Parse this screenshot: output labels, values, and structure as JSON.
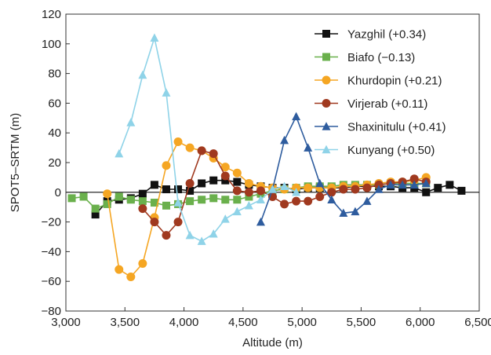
{
  "chart_data": {
    "type": "line",
    "xlabel": "Altitude (m)",
    "ylabel": "SPOT5–SRTM (m)",
    "xlim": [
      3000,
      6500
    ],
    "ylim": [
      -80,
      120
    ],
    "x_ticks": [
      "3,000",
      "3,500",
      "4,000",
      "4,500",
      "5,000",
      "5,500",
      "6,000",
      "6,500"
    ],
    "x_tick_values": [
      3000,
      3500,
      4000,
      4500,
      5000,
      5500,
      6000,
      6500
    ],
    "y_ticks": [
      "−80",
      "−60",
      "−40",
      "−20",
      "0",
      "20",
      "40",
      "60",
      "80",
      "100",
      "120"
    ],
    "y_tick_values": [
      -80,
      -60,
      -40,
      -20,
      0,
      20,
      40,
      60,
      80,
      100,
      120
    ],
    "zero_line": true,
    "grid": false,
    "legend_position": "top-right",
    "series": [
      {
        "name": "Yazghil (+0.34)",
        "color": "#111111",
        "marker": "square",
        "x": [
          3250,
          3350,
          3450,
          3550,
          3650,
          3750,
          3850,
          3950,
          4050,
          4150,
          4250,
          4350,
          4450,
          4550,
          4650,
          4750,
          4850,
          4950,
          5050,
          5150,
          5250,
          5350,
          5450,
          5550,
          5650,
          5750,
          5850,
          5950,
          6050,
          6150,
          6250,
          6350
        ],
        "y": [
          -15,
          -6,
          -5,
          -4,
          -1,
          5,
          2,
          2,
          1,
          6,
          8,
          8,
          7,
          5,
          4,
          3,
          3,
          2,
          3,
          3,
          3,
          3,
          4,
          4,
          4,
          4,
          3,
          3,
          0,
          3,
          5,
          1
        ]
      },
      {
        "name": "Biafo (−0.13)",
        "color": "#6ab04c",
        "marker": "square",
        "x": [
          3050,
          3150,
          3250,
          3350,
          3450,
          3550,
          3650,
          3750,
          3850,
          3950,
          4050,
          4150,
          4250,
          4350,
          4450,
          4550,
          4650,
          4750,
          4850,
          4950,
          5050,
          5150,
          5250,
          5350,
          5450,
          5550,
          5650,
          5750,
          5850,
          5950,
          6050
        ],
        "y": [
          -4,
          -3,
          -11,
          -8,
          -3,
          -5,
          -6,
          -7,
          -9,
          -8,
          -6,
          -5,
          -4,
          -5,
          -5,
          -3,
          -1,
          1,
          2,
          3,
          4,
          4,
          4,
          5,
          5,
          5,
          5,
          6,
          6,
          6,
          6
        ]
      },
      {
        "name": "Khurdopin (+0.21)",
        "color": "#f5a623",
        "marker": "circle",
        "x": [
          3350,
          3450,
          3550,
          3650,
          3750,
          3850,
          3950,
          4050,
          4150,
          4250,
          4350,
          4450,
          4550,
          4650,
          4750,
          4850,
          4950,
          5050,
          5150,
          5250,
          5350,
          5450,
          5550,
          5650,
          5750,
          5850,
          5950,
          6050
        ],
        "y": [
          -1,
          -52,
          -57,
          -48,
          -17,
          18,
          34,
          30,
          28,
          23,
          17,
          13,
          6,
          4,
          3,
          2,
          3,
          3,
          3,
          3,
          4,
          4,
          5,
          6,
          7,
          7,
          8,
          10
        ]
      },
      {
        "name": "Virjerab (+0.11)",
        "color": "#a0391f",
        "marker": "circle",
        "x": [
          3650,
          3750,
          3850,
          3950,
          4050,
          4150,
          4250,
          4350,
          4450,
          4550,
          4650,
          4750,
          4850,
          4950,
          5050,
          5150,
          5250,
          5350,
          5450,
          5550,
          5650,
          5750,
          5850,
          5950,
          6050
        ],
        "y": [
          -11,
          -20,
          -29,
          -20,
          6,
          28,
          26,
          11,
          1,
          0,
          1,
          -3,
          -8,
          -6,
          -6,
          -3,
          0,
          2,
          2,
          3,
          5,
          6,
          7,
          9,
          7
        ]
      },
      {
        "name": "Shaxinitulu (+0.41)",
        "color": "#2e5c9e",
        "marker": "triangle",
        "x": [
          4650,
          4750,
          4850,
          4950,
          5050,
          5150,
          5250,
          5350,
          5450,
          5550,
          5650,
          5750,
          5850,
          5950,
          6050
        ],
        "y": [
          -20,
          2,
          35,
          51,
          30,
          6,
          -5,
          -14,
          -13,
          -6,
          2,
          5,
          5,
          5,
          6
        ]
      },
      {
        "name": "Kunyang (+0.50)",
        "color": "#8fd3e8",
        "marker": "triangle",
        "x": [
          3450,
          3550,
          3650,
          3750,
          3850,
          3950,
          4050,
          4150,
          4250,
          4350,
          4450,
          4550,
          4650,
          4750,
          4850,
          4950
        ],
        "y": [
          26,
          47,
          79,
          104,
          67,
          -7,
          -29,
          -33,
          -28,
          -18,
          -13,
          -9,
          -5,
          2,
          4,
          0
        ]
      }
    ]
  }
}
